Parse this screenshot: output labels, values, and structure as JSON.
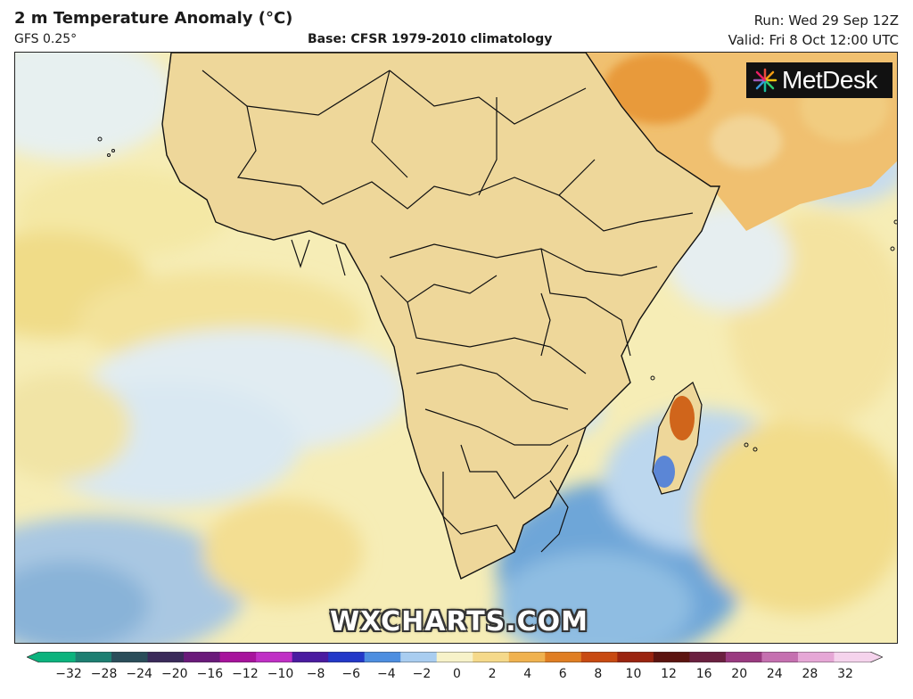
{
  "header": {
    "title": "2 m Temperature Anomaly (°C)",
    "model": "GFS 0.25°",
    "base": "Base: CFSR 1979-2010 climatology",
    "run": "Run: Wed 29 Sep 12Z",
    "valid": "Valid: Fri 8 Oct 12:00 UTC"
  },
  "branding": {
    "logo_name": "MetDesk",
    "watermark": "WXCHARTS.COM"
  },
  "colorbar": {
    "ticks": [
      "−32",
      "−28",
      "−24",
      "−20",
      "−16",
      "−12",
      "−10",
      "−8",
      "−6",
      "−4",
      "−2",
      "0",
      "2",
      "4",
      "6",
      "8",
      "10",
      "12",
      "16",
      "20",
      "24",
      "28",
      "32"
    ],
    "colors": [
      "#0bb37d",
      "#1d7f72",
      "#2a4d5a",
      "#3a2a5a",
      "#6a1a7a",
      "#a7139c",
      "#c02fc5",
      "#4a1ba0",
      "#2338c8",
      "#4d8ee0",
      "#a9cdf0",
      "#f7f2c9",
      "#f5d98a",
      "#f0b24f",
      "#e07e23",
      "#c84a12",
      "#9a2410",
      "#5c1410",
      "#6b2040",
      "#9a3a80",
      "#c570b0",
      "#e6a7d6",
      "#f5d3ec"
    ]
  },
  "legend": {
    "units": "°C"
  }
}
